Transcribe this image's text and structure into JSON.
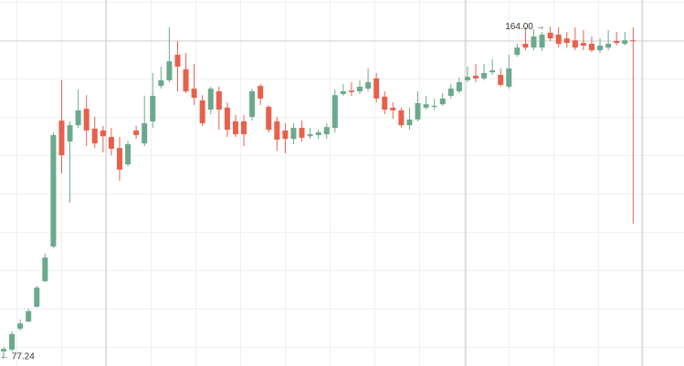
{
  "chart_data": {
    "type": "candlestick",
    "up_color": "#6ba98e",
    "down_color": "#e8604c",
    "ylim": [
      74.8,
      171.0
    ],
    "high_label": "164.00 →",
    "low_label": "← 77.24",
    "ohlc": [
      [
        78.6,
        79.8,
        77.24,
        79.3
      ],
      [
        79.1,
        83.9,
        78.6,
        83.2
      ],
      [
        84.6,
        87.0,
        84.1,
        86.0
      ],
      [
        86.5,
        89.9,
        86.3,
        89.2
      ],
      [
        90.4,
        95.9,
        90.1,
        95.4
      ],
      [
        97.1,
        104.3,
        96.8,
        103.3
      ],
      [
        106.2,
        136.2,
        105.7,
        135.5
      ],
      [
        139.3,
        149.9,
        125.4,
        130.2
      ],
      [
        133.8,
        139.1,
        117.7,
        138.1
      ],
      [
        138.1,
        147.5,
        137.4,
        142.0
      ],
      [
        142.4,
        146.0,
        132.6,
        136.7
      ],
      [
        137.2,
        140.3,
        132.1,
        133.3
      ],
      [
        136.7,
        137.9,
        130.9,
        135.2
      ],
      [
        135.0,
        137.4,
        130.2,
        131.9
      ],
      [
        132.1,
        135.0,
        123.5,
        126.4
      ],
      [
        127.8,
        134.0,
        127.3,
        133.1
      ],
      [
        136.7,
        137.9,
        134.5,
        135.5
      ],
      [
        133.3,
        145.8,
        132.6,
        138.6
      ],
      [
        139.1,
        151.8,
        137.4,
        145.8
      ],
      [
        148.4,
        153.5,
        147.7,
        149.9
      ],
      [
        149.9,
        163.8,
        149.4,
        154.9
      ],
      [
        156.6,
        160.2,
        147.0,
        153.5
      ],
      [
        152.8,
        157.1,
        146.5,
        147.0
      ],
      [
        147.7,
        154.2,
        143.4,
        145.3
      ],
      [
        144.6,
        146.0,
        137.9,
        138.6
      ],
      [
        142.2,
        148.2,
        141.0,
        147.7
      ],
      [
        147.0,
        148.2,
        136.9,
        142.2
      ],
      [
        142.7,
        144.1,
        135.0,
        136.9
      ],
      [
        139.1,
        140.8,
        135.0,
        135.7
      ],
      [
        139.1,
        140.8,
        132.6,
        135.7
      ],
      [
        140.3,
        147.7,
        139.3,
        147.0
      ],
      [
        148.4,
        148.9,
        143.4,
        145.1
      ],
      [
        142.9,
        143.4,
        136.2,
        136.9
      ],
      [
        139.1,
        140.3,
        131.4,
        134.3
      ],
      [
        136.7,
        138.6,
        130.7,
        134.5
      ],
      [
        134.5,
        138.6,
        133.1,
        137.4
      ],
      [
        137.4,
        139.3,
        133.8,
        134.8
      ],
      [
        135.2,
        137.4,
        134.5,
        135.7
      ],
      [
        135.5,
        136.9,
        134.5,
        136.2
      ],
      [
        135.7,
        138.6,
        134.5,
        137.6
      ],
      [
        137.4,
        147.5,
        136.2,
        146.0
      ],
      [
        146.3,
        148.9,
        145.8,
        147.0
      ],
      [
        147.2,
        149.4,
        145.8,
        146.8
      ],
      [
        147.0,
        149.9,
        146.3,
        148.2
      ],
      [
        147.7,
        153.0,
        147.0,
        149.4
      ],
      [
        150.4,
        151.8,
        144.1,
        145.1
      ],
      [
        145.6,
        147.0,
        141.0,
        142.2
      ],
      [
        142.7,
        144.1,
        139.8,
        142.0
      ],
      [
        142.0,
        142.7,
        137.4,
        138.1
      ],
      [
        138.1,
        142.7,
        136.9,
        139.6
      ],
      [
        139.6,
        147.0,
        139.1,
        143.9
      ],
      [
        142.7,
        145.8,
        142.2,
        143.6
      ],
      [
        142.9,
        145.1,
        142.2,
        143.2
      ],
      [
        143.6,
        146.5,
        143.2,
        145.1
      ],
      [
        145.8,
        148.9,
        145.1,
        147.7
      ],
      [
        147.0,
        150.6,
        146.5,
        149.4
      ],
      [
        149.9,
        153.5,
        149.4,
        150.8
      ],
      [
        151.1,
        154.2,
        149.4,
        150.4
      ],
      [
        150.4,
        154.2,
        149.9,
        151.8
      ],
      [
        152.0,
        155.4,
        151.3,
        152.5
      ],
      [
        151.3,
        153.0,
        148.2,
        148.7
      ],
      [
        148.2,
        156.6,
        147.7,
        153.0
      ],
      [
        156.6,
        159.5,
        156.1,
        158.5
      ],
      [
        159.5,
        163.8,
        157.8,
        158.5
      ],
      [
        158.5,
        163.3,
        157.8,
        161.4
      ],
      [
        158.5,
        162.6,
        157.6,
        161.9
      ],
      [
        162.4,
        164.0,
        160.2,
        160.9
      ],
      [
        161.9,
        163.8,
        158.5,
        159.5
      ],
      [
        160.9,
        162.6,
        158.5,
        159.7
      ],
      [
        160.4,
        163.8,
        157.8,
        158.5
      ],
      [
        159.7,
        163.1,
        157.8,
        159.0
      ],
      [
        159.5,
        161.4,
        157.3,
        157.8
      ],
      [
        157.8,
        160.9,
        157.1,
        159.0
      ],
      [
        158.5,
        163.1,
        157.8,
        159.5
      ],
      [
        160.2,
        162.6,
        159.0,
        159.7
      ],
      [
        159.5,
        162.6,
        159.0,
        160.4
      ],
      [
        160.4,
        163.8,
        112.2,
        160.2
      ]
    ]
  }
}
